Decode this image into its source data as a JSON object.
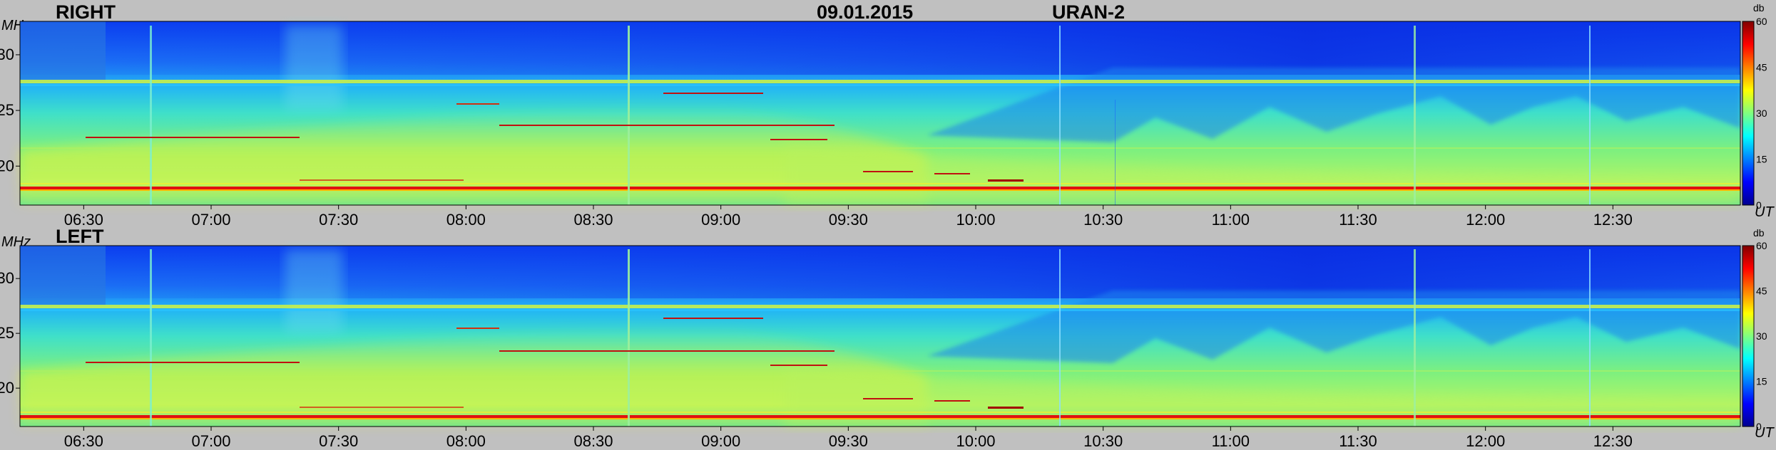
{
  "header": {
    "date": "09.01.2015",
    "instrument": "URAN-2"
  },
  "chart_data": [
    {
      "type": "heatmap",
      "title": "RIGHT",
      "ylabel": "MHz",
      "xlabel": "UT",
      "colorbar_label": "db",
      "ylim": [
        16.5,
        33
      ],
      "xlim": [
        "06:15",
        "13:00"
      ],
      "clim": [
        0,
        60
      ],
      "x_ticks": [
        "06:30",
        "07:00",
        "07:30",
        "08:00",
        "08:30",
        "09:00",
        "09:30",
        "10:00",
        "10:30",
        "11:00",
        "11:30",
        "12:00",
        "12:30"
      ],
      "y_ticks": [
        20,
        25,
        30
      ],
      "colorbar_ticks": [
        0,
        15,
        30,
        45,
        60
      ],
      "colormap": [
        "#00008f",
        "#0000ff",
        "#00ffff",
        "#ffff00",
        "#ff0000",
        "#800000"
      ]
    },
    {
      "type": "heatmap",
      "title": "LEFT",
      "ylabel": "MHz",
      "xlabel": "UT",
      "colorbar_label": "db",
      "ylim": [
        16.5,
        33
      ],
      "xlim": [
        "06:15",
        "13:00"
      ],
      "clim": [
        0,
        60
      ],
      "x_ticks": [
        "06:30",
        "07:00",
        "07:30",
        "08:00",
        "08:30",
        "09:00",
        "09:30",
        "10:00",
        "10:30",
        "11:00",
        "11:30",
        "12:00",
        "12:30"
      ],
      "y_ticks": [
        20,
        25,
        30
      ],
      "colorbar_ticks": [
        0,
        15,
        30,
        45,
        60
      ],
      "colormap": [
        "#00008f",
        "#0000ff",
        "#00ffff",
        "#ffff00",
        "#ff0000",
        "#800000"
      ]
    }
  ]
}
